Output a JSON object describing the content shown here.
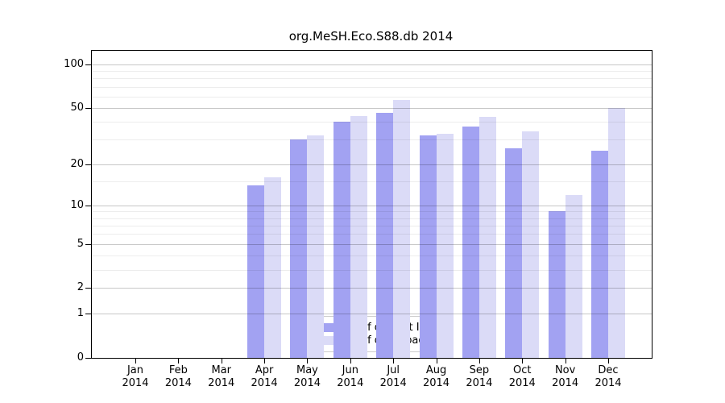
{
  "title": "org.MeSH.Eco.S88.db 2014",
  "chart_data": {
    "type": "bar",
    "title": "org.MeSH.Eco.S88.db 2014",
    "categories": [
      "Jan",
      "Feb",
      "Mar",
      "Apr",
      "May",
      "Jun",
      "Jul",
      "Aug",
      "Sep",
      "Oct",
      "Nov",
      "Dec"
    ],
    "year": "2014",
    "series": [
      {
        "name": "Nb of distinct IPs",
        "color": "#a2a2f2",
        "values": [
          0,
          0,
          0,
          14,
          30,
          40,
          46,
          32,
          37,
          26,
          9,
          25
        ]
      },
      {
        "name": "Nb of downloads",
        "color": "#dbdbf7",
        "values": [
          0,
          0,
          0,
          16,
          32,
          44,
          57,
          33,
          43,
          34,
          12,
          50
        ]
      }
    ],
    "xlabel": "",
    "ylabel": "",
    "yscale": "log1p",
    "yticks": [
      0,
      1,
      2,
      5,
      10,
      20,
      50,
      100
    ],
    "yticks_minor": [
      3,
      4,
      6,
      7,
      8,
      9,
      15,
      30,
      40,
      60,
      70,
      80,
      90
    ],
    "ylim": [
      0,
      124
    ],
    "grid": true,
    "grid_on_top": true,
    "legend_position": "bottom-center",
    "colors": {
      "spine": "#000000",
      "grid_major": "#c8c8c8",
      "grid_minor": "#ececec",
      "background": "#ffffff"
    }
  }
}
